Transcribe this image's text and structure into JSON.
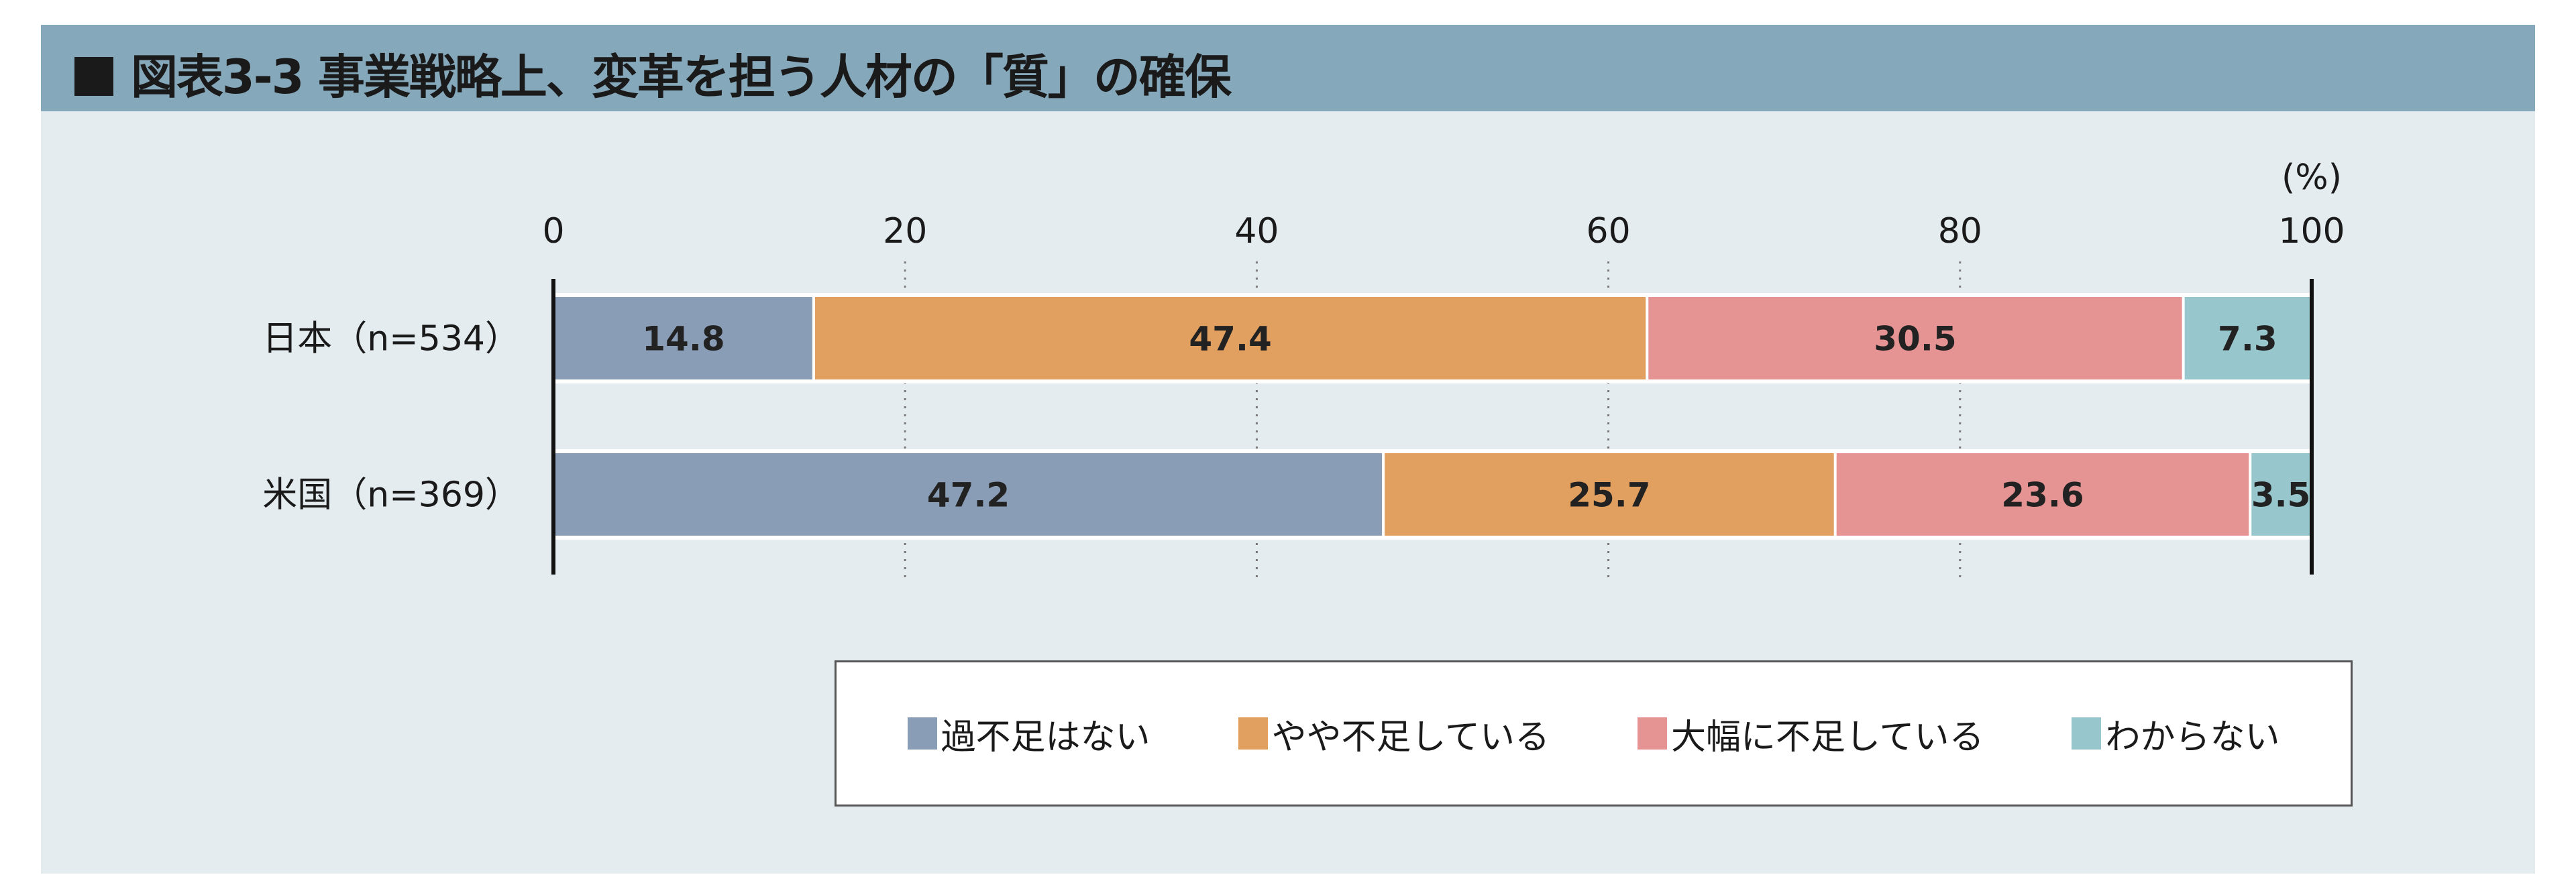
{
  "title": "図表3-3 事業戦略上、変革を担う人材の「質」の確保",
  "chart_data": {
    "type": "bar",
    "orientation": "horizontal",
    "stacked": true,
    "title": "図表3-3 事業戦略上、変革を担う人材の「質」の確保",
    "unit_label": "(%)",
    "xlim": [
      0,
      100
    ],
    "x_ticks": [
      "0",
      "20",
      "40",
      "60",
      "80",
      "100"
    ],
    "grid": "dotted vertical",
    "legend_position": "bottom",
    "categories": [
      "日本（n=534）",
      "米国（n=369）"
    ],
    "series": [
      {
        "name": "過不足はない",
        "color": "#8a9db6",
        "values": [
          14.8,
          47.2
        ]
      },
      {
        "name": "やや不足している",
        "color": "#e19f60",
        "values": [
          47.4,
          25.7
        ]
      },
      {
        "name": "大幅に不足している",
        "color": "#e69393",
        "values": [
          30.5,
          23.6
        ]
      },
      {
        "name": "わからない",
        "color": "#98c6cd",
        "values": [
          7.3,
          3.5
        ]
      }
    ]
  }
}
